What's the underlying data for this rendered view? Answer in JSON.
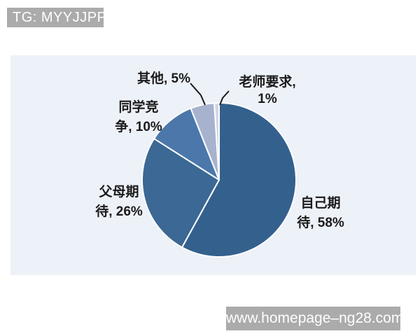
{
  "header": {
    "badge_text": "TG: MYYJJPP"
  },
  "footer": {
    "url": "www.homepage–ng28.com"
  },
  "chart_data": {
    "type": "pie",
    "title": "",
    "categories": [
      "自己期待",
      "父母期待",
      "同学竞争",
      "其他",
      "老师要求"
    ],
    "values": [
      58,
      26,
      10,
      5,
      1
    ],
    "colors": [
      "#34608e",
      "#3b6894",
      "#4b77ab",
      "#a7b2ce",
      "#d3d7e2"
    ],
    "labels": [
      "自己期\n待, 58%",
      "父母期\n待, 26%",
      "同学竞\n争, 10%",
      "其他, 5%",
      "老师要求, 1%"
    ],
    "start_angle": "top",
    "direction": "clockwise",
    "legend": "none",
    "slice_border_color": "#ffffff"
  }
}
